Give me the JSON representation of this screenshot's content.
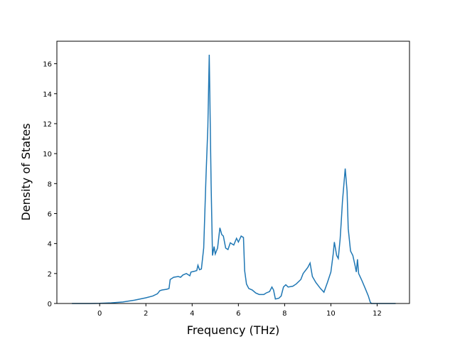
{
  "chart_data": {
    "type": "line",
    "x_label": "Frequency (THz)",
    "y_label": "Density of States",
    "x": [
      -1.2,
      -0.5,
      0,
      0.5,
      1,
      1.5,
      2,
      2.3,
      2.5,
      2.6,
      2.7,
      2.9,
      3.0,
      3.05,
      3.2,
      3.4,
      3.5,
      3.6,
      3.75,
      3.9,
      3.95,
      4.1,
      4.2,
      4.25,
      4.32,
      4.4,
      4.5,
      4.6,
      4.68,
      4.74,
      4.82,
      4.88,
      4.95,
      5.0,
      5.1,
      5.2,
      5.28,
      5.35,
      5.45,
      5.55,
      5.65,
      5.8,
      5.92,
      6.0,
      6.12,
      6.22,
      6.27,
      6.35,
      6.45,
      6.6,
      6.75,
      6.9,
      7.1,
      7.2,
      7.35,
      7.45,
      7.52,
      7.6,
      7.75,
      7.85,
      7.95,
      8.05,
      8.15,
      8.35,
      8.5,
      8.7,
      8.8,
      9.0,
      9.1,
      9.2,
      9.35,
      9.55,
      9.7,
      9.85,
      10.0,
      10.1,
      10.15,
      10.25,
      10.32,
      10.4,
      10.45,
      10.5,
      10.62,
      10.7,
      10.75,
      10.85,
      10.95,
      11.05,
      11.1,
      11.15,
      11.2,
      11.35,
      11.5,
      11.62,
      11.7,
      11.75,
      12.0,
      12.8
    ],
    "series": [
      {
        "color": "#1f77b4",
        "values": [
          0,
          0,
          0.01,
          0.04,
          0.1,
          0.22,
          0.38,
          0.5,
          0.65,
          0.85,
          0.9,
          0.95,
          1.0,
          1.6,
          1.75,
          1.8,
          1.75,
          1.9,
          2.0,
          1.85,
          2.1,
          2.15,
          2.2,
          2.55,
          2.25,
          2.3,
          3.7,
          8.5,
          11.8,
          16.6,
          8,
          3.2,
          3.8,
          3.3,
          3.7,
          5.05,
          4.6,
          4.5,
          3.7,
          3.6,
          4.05,
          3.9,
          4.35,
          4.1,
          4.5,
          4.4,
          2.2,
          1.3,
          1.0,
          0.9,
          0.7,
          0.6,
          0.6,
          0.7,
          0.8,
          1.1,
          0.9,
          0.3,
          0.35,
          0.5,
          1.1,
          1.25,
          1.1,
          1.15,
          1.3,
          1.6,
          2.0,
          2.4,
          2.7,
          1.8,
          1.4,
          1.0,
          0.75,
          1.4,
          2.1,
          3.3,
          4.1,
          3.2,
          3.0,
          4.3,
          5.5,
          6.8,
          9.0,
          7.5,
          5.0,
          3.5,
          3.2,
          2.5,
          2.1,
          2.95,
          2.0,
          1.5,
          0.95,
          0.5,
          0.1,
          0,
          0,
          0
        ]
      }
    ],
    "xlim": [
      -1.85,
      13.4
    ],
    "ylim": [
      0,
      17.5
    ],
    "xticks": [
      0,
      2,
      4,
      6,
      8,
      10,
      12
    ],
    "yticks": [
      0,
      2,
      4,
      6,
      8,
      10,
      12,
      14,
      16
    ]
  }
}
